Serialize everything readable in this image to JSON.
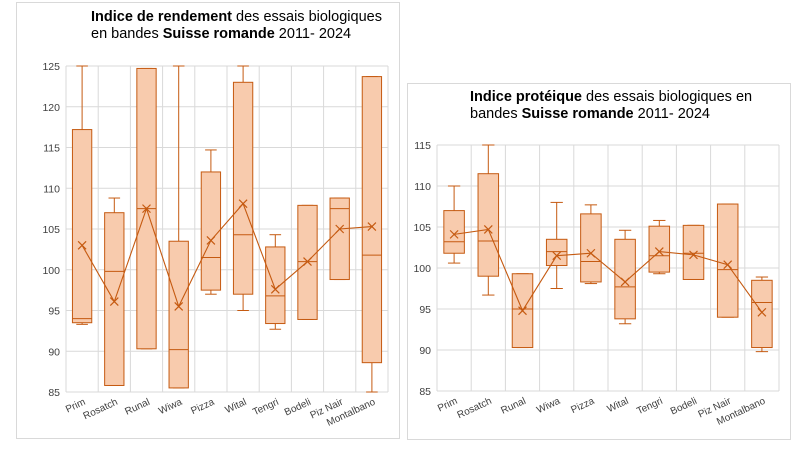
{
  "chart_data": [
    {
      "type": "boxplot",
      "title_parts": [
        {
          "text": "Indice de rendement",
          "bold": true
        },
        {
          "text": " des essais biologiques en bandes ",
          "bold": false
        },
        {
          "text": "Suisse romande",
          "bold": true
        },
        {
          "text": " 2011- 2024",
          "bold": false
        }
      ],
      "categories": [
        "Prim",
        "Rosatch",
        "Runal",
        "Wiwa",
        "Pizza",
        "Wital",
        "Tengri",
        "Bodeli",
        "Piz Nair",
        "Montalbano"
      ],
      "ylim": [
        85,
        125
      ],
      "yticks": [
        85,
        90,
        95,
        100,
        105,
        110,
        115,
        120,
        125
      ],
      "grid": true,
      "boxes": [
        {
          "min": 93.3,
          "q1": 93.5,
          "median": 94.0,
          "q3": 117.2,
          "max": 125,
          "mean": 103.0
        },
        {
          "min": 85.8,
          "q1": 85.8,
          "median": 99.8,
          "q3": 107.0,
          "max": 108.8,
          "mean": 96.1
        },
        {
          "min": 90.3,
          "q1": 90.3,
          "median": 107.5,
          "q3": 124.7,
          "max": 124.7,
          "mean": 107.5
        },
        {
          "min": 85.5,
          "q1": 85.5,
          "median": 90.2,
          "q3": 103.5,
          "max": 125,
          "mean": 95.5
        },
        {
          "min": 97.0,
          "q1": 97.5,
          "median": 101.5,
          "q3": 112.0,
          "max": 114.7,
          "mean": 103.6
        },
        {
          "min": 95.0,
          "q1": 97.0,
          "median": 104.3,
          "q3": 123.0,
          "max": 125,
          "mean": 108.1
        },
        {
          "min": 92.7,
          "q1": 93.4,
          "median": 96.8,
          "q3": 102.8,
          "max": 104.3,
          "mean": 97.6
        },
        {
          "min": 93.9,
          "q1": 93.9,
          "median": 101.0,
          "q3": 107.9,
          "max": 107.9,
          "mean": 101.0
        },
        {
          "min": 98.8,
          "q1": 98.8,
          "median": 107.5,
          "q3": 108.8,
          "max": 108.8,
          "mean": 105.0
        },
        {
          "min": 85.0,
          "q1": 88.6,
          "median": 101.8,
          "q3": 123.7,
          "max": 123.7,
          "mean": 105.3
        }
      ]
    },
    {
      "type": "boxplot",
      "title_parts": [
        {
          "text": "Indice protéique",
          "bold": true
        },
        {
          "text": " des essais biologiques en bandes ",
          "bold": false
        },
        {
          "text": "Suisse romande",
          "bold": true
        },
        {
          "text": " 2011- 2024",
          "bold": false
        }
      ],
      "categories": [
        "Prim",
        "Rosatch",
        "Runal",
        "Wiwa",
        "Pizza",
        "Wital",
        "Tengri",
        "Bodeli",
        "Piz Nair",
        "Montalbano"
      ],
      "ylim": [
        85,
        115
      ],
      "yticks": [
        85,
        90,
        95,
        100,
        105,
        110,
        115
      ],
      "grid": true,
      "boxes": [
        {
          "min": 100.6,
          "q1": 101.8,
          "median": 103.2,
          "q3": 107.0,
          "max": 110.0,
          "mean": 104.1
        },
        {
          "min": 96.7,
          "q1": 99.0,
          "median": 103.3,
          "q3": 111.5,
          "max": 115,
          "mean": 104.7
        },
        {
          "min": 90.3,
          "q1": 90.3,
          "median": 95.0,
          "q3": 99.3,
          "max": 99.3,
          "mean": 94.8
        },
        {
          "min": 97.5,
          "q1": 100.3,
          "median": 102.0,
          "q3": 103.5,
          "max": 108.0,
          "mean": 101.5
        },
        {
          "min": 98.1,
          "q1": 98.3,
          "median": 100.8,
          "q3": 106.6,
          "max": 107.7,
          "mean": 101.8
        },
        {
          "min": 93.2,
          "q1": 93.8,
          "median": 97.7,
          "q3": 103.5,
          "max": 104.6,
          "mean": 98.3
        },
        {
          "min": 99.3,
          "q1": 99.5,
          "median": 101.5,
          "q3": 105.1,
          "max": 105.8,
          "mean": 102.0
        },
        {
          "min": 98.6,
          "q1": 98.6,
          "median": 101.8,
          "q3": 105.2,
          "max": 105.2,
          "mean": 101.6
        },
        {
          "min": 94.0,
          "q1": 94.0,
          "median": 99.8,
          "q3": 107.8,
          "max": 107.8,
          "mean": 100.4
        },
        {
          "min": 89.8,
          "q1": 90.3,
          "median": 95.8,
          "q3": 98.5,
          "max": 98.9,
          "mean": 94.6
        }
      ]
    }
  ],
  "colors": {
    "box_fill": "#f8cbad",
    "box_stroke": "#c55a11",
    "grid": "#d9d9d9"
  }
}
